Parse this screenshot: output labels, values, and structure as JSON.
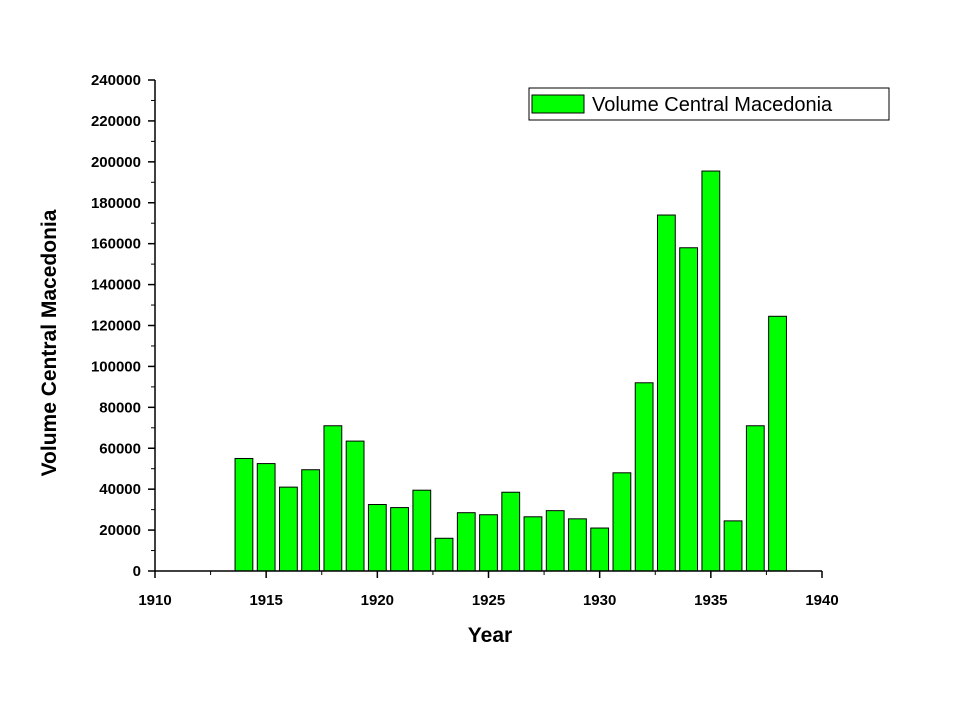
{
  "chart_data": {
    "type": "bar",
    "title": "",
    "xlabel": "Year",
    "ylabel": "Volume Central Macedonia",
    "xlim": [
      1910,
      1940
    ],
    "ylim": [
      0,
      240000
    ],
    "xticks": [
      "1910",
      "1915",
      "1920",
      "1925",
      "1930",
      "1935",
      "1940"
    ],
    "yticks": [
      "0",
      "20000",
      "40000",
      "60000",
      "80000",
      "100000",
      "120000",
      "140000",
      "160000",
      "180000",
      "200000",
      "220000",
      "240000"
    ],
    "grid": false,
    "legend_position": "top-right",
    "bar_color": "#00ff00",
    "series": [
      {
        "name": "Volume Central Macedonia",
        "x": [
          1914,
          1915,
          1916,
          1917,
          1918,
          1919,
          1920,
          1921,
          1922,
          1923,
          1924,
          1925,
          1926,
          1927,
          1928,
          1929,
          1930,
          1931,
          1932,
          1933,
          1934,
          1935,
          1936,
          1937,
          1938
        ],
        "values": [
          55000,
          52500,
          41000,
          49500,
          71000,
          63500,
          32500,
          31000,
          39500,
          16000,
          28500,
          27500,
          38500,
          26500,
          29500,
          25500,
          21000,
          48000,
          92000,
          174000,
          158000,
          195500,
          24500,
          71000,
          124500
        ]
      }
    ]
  }
}
